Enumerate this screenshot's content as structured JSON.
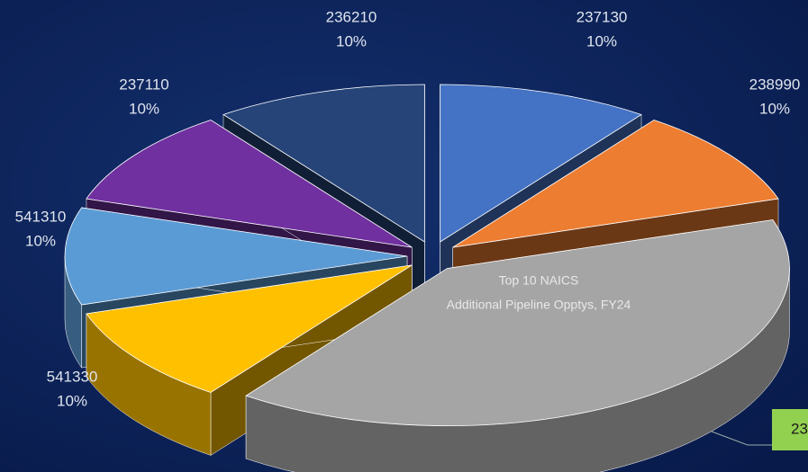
{
  "chart_data": {
    "type": "pie3d",
    "title": "Top 10 NAICS",
    "subtitle": "Additional Pipeline Opptys, FY24",
    "categories": [
      "237130",
      "238990",
      "23",
      "541330",
      "541310",
      "237110",
      "236210"
    ],
    "values": [
      10,
      10,
      40,
      10,
      10,
      10,
      10
    ],
    "value_labels": [
      "10%",
      "10%",
      null,
      "10%",
      "10%",
      "10%",
      "10%"
    ],
    "colors": [
      "#4472c4",
      "#ed7d31",
      "#a5a5a5",
      "#ffc000",
      "#5b9bd5",
      "#7030a0",
      "#264478"
    ]
  }
}
